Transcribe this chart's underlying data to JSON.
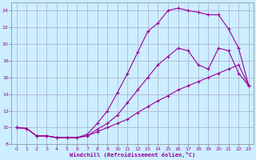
{
  "xlabel": "Windchill (Refroidissement éolien,°C)",
  "bg_color": "#cceeff",
  "line_color": "#990099",
  "grid_color": "#aaaacc",
  "xlim": [
    -0.5,
    23.5
  ],
  "ylim": [
    8,
    25
  ],
  "xticks": [
    0,
    1,
    2,
    3,
    4,
    5,
    6,
    7,
    8,
    9,
    10,
    11,
    12,
    13,
    14,
    15,
    16,
    17,
    18,
    19,
    20,
    21,
    22,
    23
  ],
  "yticks": [
    8,
    10,
    12,
    14,
    16,
    18,
    20,
    22,
    24
  ],
  "curve1_x": [
    0,
    1,
    2,
    3,
    4,
    5,
    6,
    7,
    8,
    9,
    10,
    11,
    12,
    13,
    14,
    15,
    16,
    17,
    18,
    19,
    20,
    21,
    22,
    23
  ],
  "curve1_y": [
    10.0,
    9.9,
    9.0,
    9.0,
    8.8,
    8.8,
    8.8,
    9.2,
    10.5,
    12.0,
    14.2,
    16.5,
    19.0,
    21.5,
    22.5,
    24.0,
    24.3,
    24.0,
    23.8,
    23.5,
    23.5,
    21.8,
    19.5,
    15.0
  ],
  "curve2_x": [
    0,
    1,
    2,
    3,
    4,
    5,
    6,
    7,
    8,
    9,
    10,
    11,
    12,
    13,
    14,
    15,
    16,
    17,
    18,
    19,
    20,
    21,
    22,
    23
  ],
  "curve2_y": [
    10.0,
    9.9,
    9.0,
    9.0,
    8.8,
    8.8,
    8.8,
    9.0,
    9.8,
    10.5,
    11.5,
    13.0,
    14.5,
    16.0,
    17.5,
    18.5,
    19.5,
    19.2,
    17.5,
    17.0,
    19.5,
    19.2,
    16.5,
    15.0
  ],
  "curve3_x": [
    0,
    1,
    2,
    3,
    4,
    5,
    6,
    7,
    8,
    9,
    10,
    11,
    12,
    13,
    14,
    15,
    16,
    17,
    18,
    19,
    20,
    21,
    22,
    23
  ],
  "curve3_y": [
    10.0,
    9.9,
    9.0,
    9.0,
    8.8,
    8.8,
    8.8,
    9.0,
    9.5,
    10.0,
    10.5,
    11.0,
    11.8,
    12.5,
    13.2,
    13.8,
    14.5,
    15.0,
    15.5,
    16.0,
    16.5,
    17.0,
    17.5,
    15.0
  ]
}
